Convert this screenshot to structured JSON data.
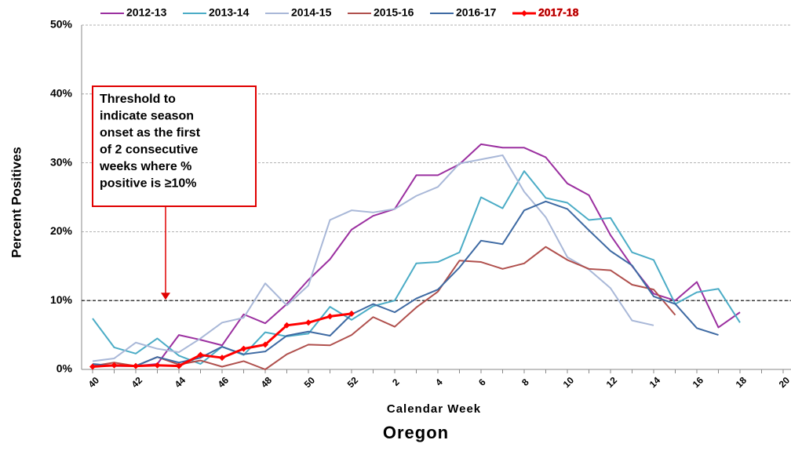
{
  "chart_data": {
    "type": "line",
    "title": "Oregon",
    "x_label": "Calendar Week",
    "y_label": "Percent Positives",
    "categories": [
      "40",
      null,
      "42",
      null,
      "44",
      null,
      "46",
      null,
      "48",
      null,
      "50",
      null,
      "52",
      null,
      "2",
      null,
      "4",
      null,
      "6",
      null,
      "8",
      null,
      "10",
      null,
      "12",
      null,
      "14",
      null,
      "16",
      null,
      "18",
      null,
      "20"
    ],
    "ylim": [
      0,
      50
    ],
    "yticks": [
      {
        "value": 0,
        "label": "0%"
      },
      {
        "value": 10,
        "label": "10%"
      },
      {
        "value": 20,
        "label": "20%"
      },
      {
        "value": 30,
        "label": "30%"
      },
      {
        "value": 40,
        "label": "40%"
      },
      {
        "value": 50,
        "label": "50%"
      }
    ],
    "grid": true,
    "threshold": 10,
    "annotation": [
      "Threshold to",
      "indicate season",
      "onset  as the first",
      "of 2 consecutive",
      "weeks where %",
      "positive is ≥10%"
    ],
    "legend": "top",
    "series": [
      {
        "name": "2012-13",
        "color": "#9b30a0",
        "values": [
          0.5,
          0.5,
          0.5,
          0.8,
          5.0,
          4.3,
          3.5,
          8.0,
          6.7,
          9.5,
          13,
          16,
          20.3,
          22.3,
          23.3,
          28.2,
          28.2,
          29.8,
          32.7,
          32.2,
          32.2,
          30.8,
          27,
          25.3,
          19.5,
          15,
          11,
          10,
          12.7,
          6.1,
          8.3,
          null,
          null
        ]
      },
      {
        "name": "2013-14",
        "color": "#4bacc6",
        "values": [
          7.4,
          3.2,
          2.3,
          4.5,
          2.0,
          0.8,
          3.3,
          2.1,
          5.4,
          4.8,
          5.2,
          9.1,
          7.2,
          9.2,
          10,
          15.4,
          15.6,
          17,
          25,
          23.4,
          28.8,
          24.9,
          24.2,
          21.7,
          22,
          17,
          15.9,
          9.5,
          11.2,
          11.7,
          6.8,
          null,
          null
        ]
      },
      {
        "name": "2014-15",
        "color": "#a9b8d8",
        "values": [
          1.2,
          1.6,
          3.9,
          3.0,
          2.5,
          4.5,
          6.8,
          7.5,
          12.5,
          9.3,
          12.2,
          21.7,
          23.1,
          22.8,
          23.3,
          25.2,
          26.5,
          29.9,
          30.5,
          31.1,
          25.8,
          22.1,
          16.3,
          14.5,
          11.8,
          7.1,
          6.4,
          null,
          null,
          null,
          null,
          null,
          null
        ]
      },
      {
        "name": "2015-16",
        "color": "#b0504d",
        "values": [
          0.5,
          1.0,
          0.5,
          1.8,
          0.7,
          1.3,
          0.4,
          1.2,
          0.0,
          2.2,
          3.6,
          3.5,
          5.0,
          7.6,
          6.2,
          9.0,
          11.3,
          15.8,
          15.6,
          14.6,
          15.4,
          17.8,
          15.9,
          14.6,
          14.4,
          12.3,
          11.6,
          7.9,
          null,
          null,
          null,
          null,
          null
        ]
      },
      {
        "name": "2016-17",
        "color": "#3e6aa3",
        "values": [
          0.8,
          0.5,
          0.5,
          1.8,
          1.0,
          1.7,
          3.3,
          2.2,
          2.6,
          4.9,
          5.5,
          4.9,
          8.0,
          9.5,
          8.3,
          10.3,
          11.6,
          14.8,
          18.7,
          18.2,
          23.1,
          24.4,
          23.3,
          20.2,
          17.2,
          15.1,
          10.6,
          9.5,
          6.0,
          5.0,
          null,
          null,
          null
        ]
      },
      {
        "name": "2017-18",
        "color": "#ff0000",
        "markers": true,
        "values": [
          0.4,
          0.6,
          0.5,
          0.6,
          0.5,
          2.1,
          1.7,
          3.0,
          3.6,
          6.4,
          6.8,
          7.7,
          8.1,
          null,
          null,
          null,
          null,
          null,
          null,
          null,
          null,
          null,
          null,
          null,
          null,
          null,
          null,
          null,
          null,
          null,
          null,
          null,
          null
        ]
      }
    ]
  }
}
